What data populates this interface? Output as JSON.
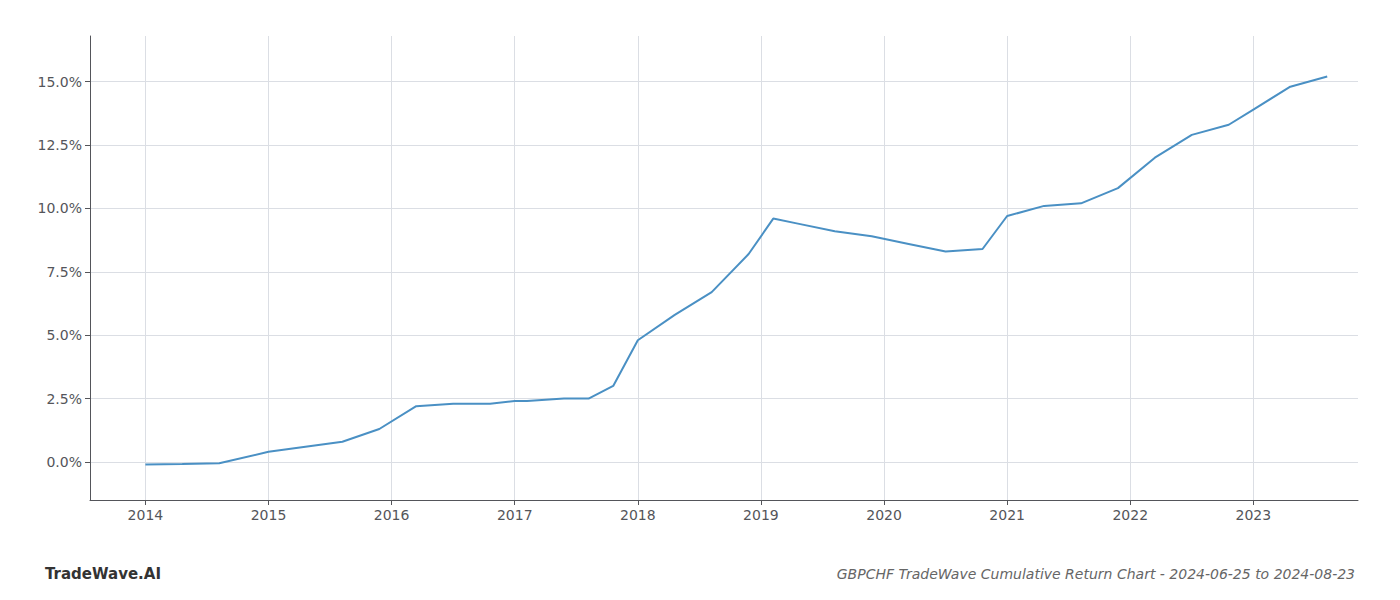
{
  "chart_data": {
    "type": "line",
    "title": "GBPCHF TradeWave Cumulative Return Chart - 2024-06-25 to 2024-08-23",
    "annotations": [
      "TradeWave.AI"
    ],
    "x": [
      2014.0,
      2014.3,
      2014.6,
      2015.0,
      2015.3,
      2015.6,
      2015.9,
      2016.2,
      2016.5,
      2016.8,
      2017.0,
      2017.1,
      2017.4,
      2017.6,
      2017.8,
      2018.0,
      2018.3,
      2018.6,
      2018.9,
      2019.1,
      2019.3,
      2019.6,
      2019.9,
      2020.2,
      2020.5,
      2020.8,
      2021.0,
      2021.3,
      2021.6,
      2021.9,
      2022.2,
      2022.5,
      2022.8,
      2023.0,
      2023.3,
      2023.6
    ],
    "values": [
      -0.001,
      -0.0008,
      -0.0005,
      0.004,
      0.006,
      0.008,
      0.013,
      0.022,
      0.023,
      0.023,
      0.024,
      0.024,
      0.025,
      0.025,
      0.03,
      0.048,
      0.058,
      0.067,
      0.082,
      0.096,
      0.094,
      0.091,
      0.089,
      0.086,
      0.083,
      0.084,
      0.097,
      0.101,
      0.102,
      0.108,
      0.12,
      0.129,
      0.133,
      0.139,
      0.148,
      0.152
    ],
    "color": "#4a90c4",
    "xlim": [
      2013.55,
      2023.85
    ],
    "ylim": [
      -0.015,
      0.168
    ],
    "xticks": [
      2014,
      2015,
      2016,
      2017,
      2018,
      2019,
      2020,
      2021,
      2022,
      2023
    ],
    "yticks": [
      {
        "value": 0.0,
        "label": "0.0%"
      },
      {
        "value": 0.025,
        "label": "2.5%"
      },
      {
        "value": 0.05,
        "label": "5.0%"
      },
      {
        "value": 0.075,
        "label": "7.5%"
      },
      {
        "value": 0.1,
        "label": "10.0%"
      },
      {
        "value": 0.125,
        "label": "12.5%"
      },
      {
        "value": 0.15,
        "label": "15.0%"
      }
    ],
    "grid": true
  }
}
